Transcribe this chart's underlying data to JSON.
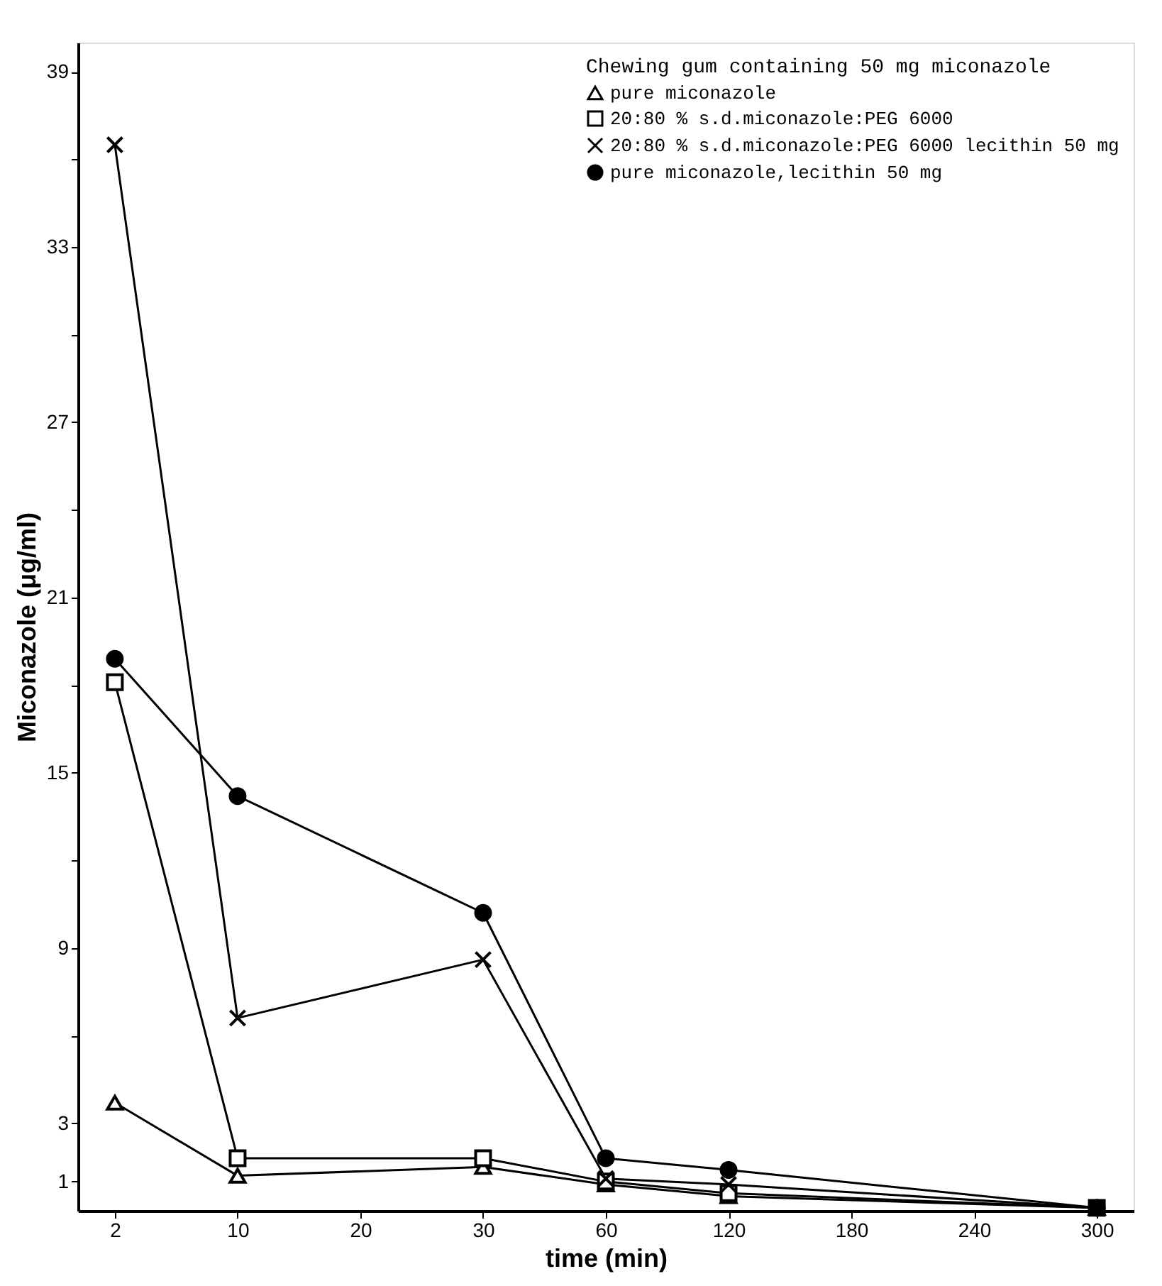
{
  "chart_data": {
    "type": "line",
    "xlabel": "time (min)",
    "ylabel": "Miconazole (μg/ml)",
    "legend_title": "Chewing gum containing 50 mg miconazole",
    "legend": "top right",
    "categories": [
      "2",
      "10",
      "20",
      "30",
      "60",
      "120",
      "180",
      "240",
      "300"
    ],
    "series": [
      {
        "name": "pure miconazole",
        "color": "#000000",
        "marker": "triangle",
        "x": [
          "2",
          "10",
          "30",
          "60",
          "120",
          "300"
        ],
        "values": [
          3.7,
          1.2,
          1.5,
          0.9,
          0.5,
          0.1
        ]
      },
      {
        "name": "20:80 % s.d.miconazole:PEG 6000",
        "color": "#000000",
        "marker": "square",
        "x": [
          "2",
          "10",
          "30",
          "60",
          "120",
          "300"
        ],
        "values": [
          18.1,
          1.8,
          1.8,
          1.0,
          0.6,
          0.1
        ]
      },
      {
        "name": "20:80 % s.d.miconazole:PEG 6000 lecithin 50 mg",
        "color": "#000000",
        "marker": "cross",
        "x": [
          "2",
          "10",
          "30",
          "60",
          "120",
          "300"
        ],
        "values": [
          36.5,
          6.6,
          8.6,
          1.1,
          0.9,
          0.1
        ]
      },
      {
        "name": "pure miconazole,lecithin 50 mg",
        "color": "#000000",
        "marker": "circle",
        "x": [
          "2",
          "10",
          "30",
          "60",
          "120",
          "300"
        ],
        "values": [
          18.9,
          14.2,
          10.2,
          1.8,
          1.4,
          0.1
        ]
      }
    ],
    "ylim": [
      0,
      40
    ],
    "yticks": [
      1,
      3,
      {
        "value": 6,
        "label": null
      },
      9,
      {
        "value": 12,
        "label": null
      },
      15,
      {
        "value": 18,
        "label": null
      },
      21,
      {
        "value": 24,
        "label": null
      },
      27,
      {
        "value": 30,
        "label": null
      },
      33,
      {
        "value": 36,
        "label": null
      },
      39
    ],
    "grid": false
  }
}
